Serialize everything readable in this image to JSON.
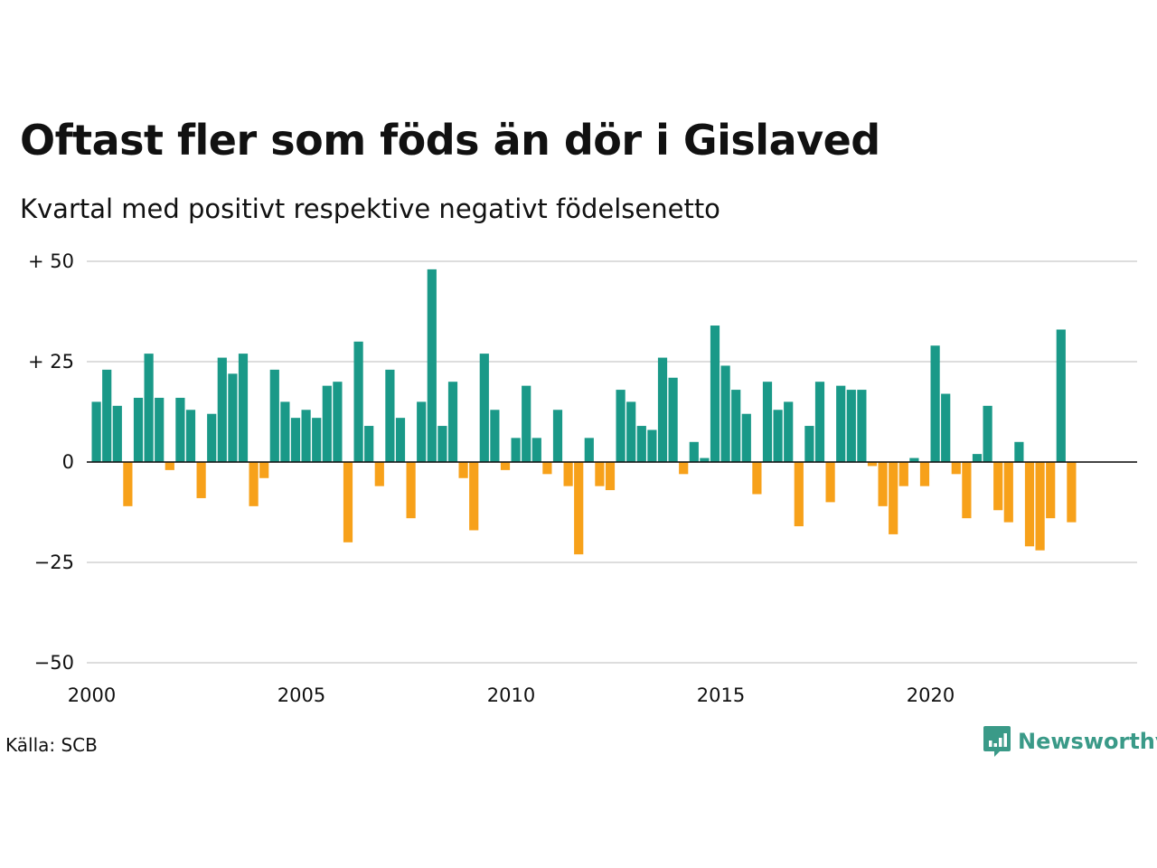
{
  "header": {
    "title": "Oftast fler som föds än dör i Gislaved",
    "subtitle": "Kvartal med positivt respektive negativt födelsenetto"
  },
  "footer": {
    "source": "Källa: SCB",
    "brand_name": "Newsworthy",
    "brand_icon": "newsworthy-logo-icon"
  },
  "colors": {
    "positive": "#1a9988",
    "negative": "#f7a11a",
    "grid": "#dddddd",
    "brand": "#3a9a88"
  },
  "chart_data": {
    "type": "bar",
    "x_start": 2000,
    "x_period": "quarter",
    "xticks": [
      "2000",
      "2005",
      "2010",
      "2015",
      "2020"
    ],
    "yticks": [
      {
        "value": 50,
        "label": "+ 50"
      },
      {
        "value": 25,
        "label": "+ 25"
      },
      {
        "value": 0,
        "label": "0"
      },
      {
        "value": -25,
        "label": "−25"
      },
      {
        "value": -50,
        "label": "−50"
      }
    ],
    "ylim": [
      -50,
      50
    ],
    "grid": true,
    "values": [
      15,
      23,
      14,
      -11,
      16,
      27,
      16,
      -2,
      16,
      13,
      -9,
      12,
      26,
      22,
      27,
      -11,
      -4,
      23,
      15,
      11,
      13,
      11,
      19,
      20,
      -20,
      30,
      9,
      -6,
      23,
      11,
      -14,
      15,
      48,
      9,
      20,
      -4,
      -17,
      27,
      13,
      -2,
      6,
      19,
      6,
      -3,
      13,
      -6,
      -23,
      6,
      -6,
      -7,
      18,
      15,
      9,
      8,
      26,
      21,
      -3,
      5,
      1,
      34,
      24,
      18,
      12,
      -8,
      20,
      13,
      15,
      -16,
      9,
      20,
      -10,
      19,
      18,
      18,
      -1,
      -11,
      -18,
      -6,
      1,
      -6,
      29,
      17,
      -3,
      -14,
      2,
      14,
      -12,
      -15,
      5,
      -21,
      -22,
      -14,
      33,
      -15
    ]
  }
}
